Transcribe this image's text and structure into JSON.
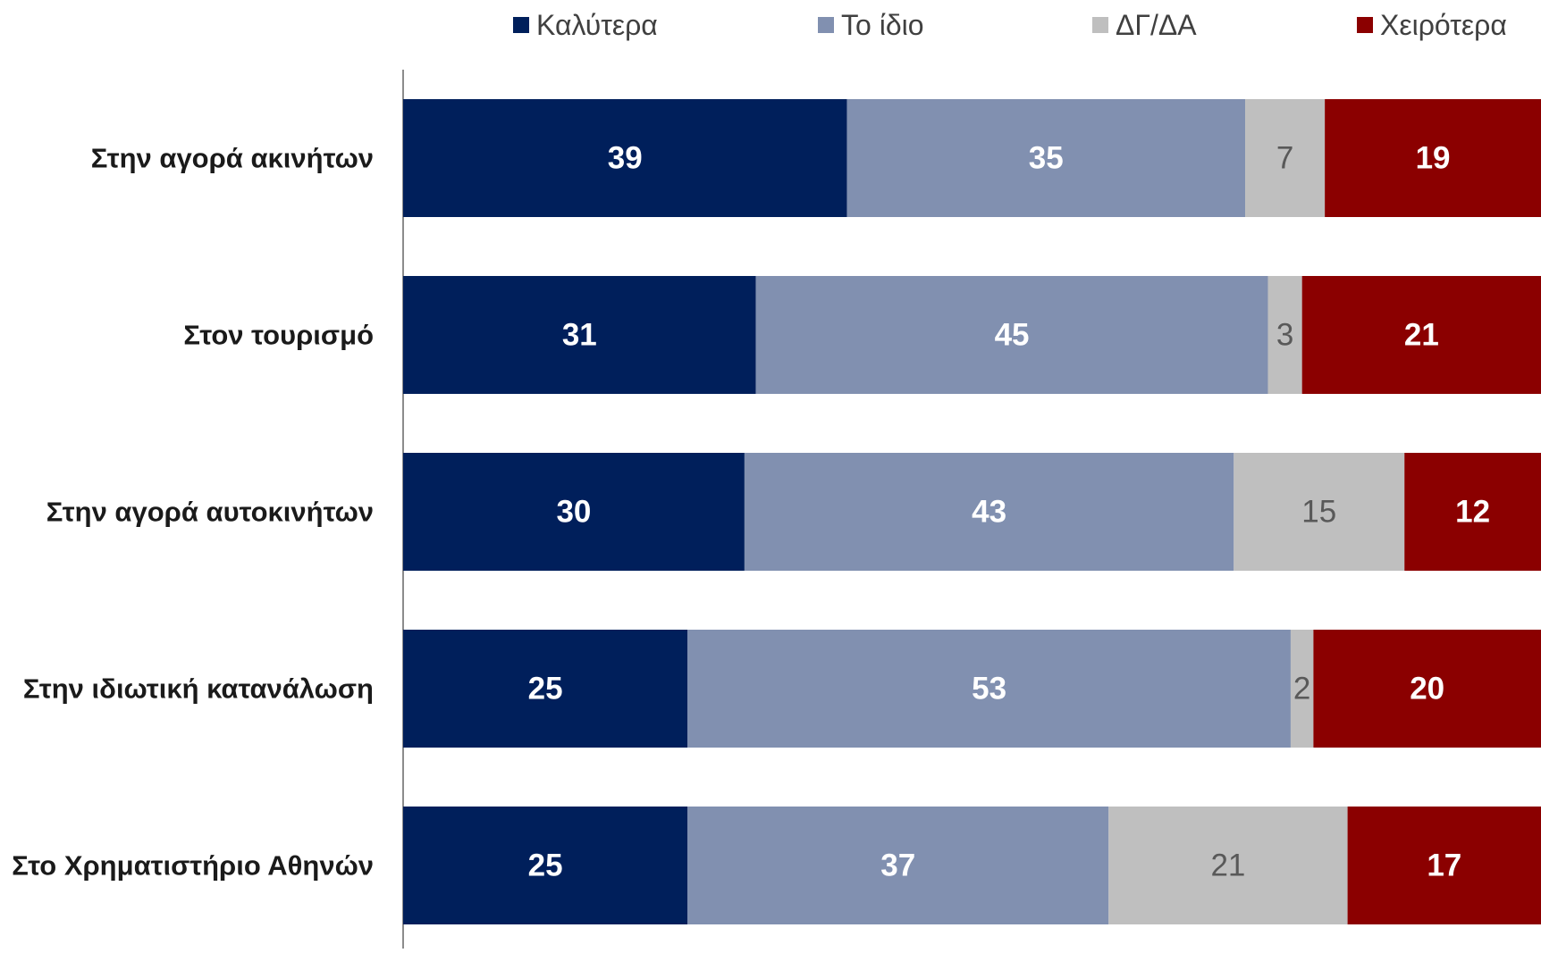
{
  "chart_data": {
    "type": "bar",
    "orientation": "horizontal",
    "stacked": true,
    "title": "",
    "xlabel": "",
    "ylabel": "",
    "xlim": [
      0,
      100
    ],
    "grid": false,
    "legend_position": "top",
    "categories": [
      "Στην αγορά ακινήτων",
      "Στον τουρισμό",
      "Στην αγορά αυτοκινήτων",
      "Στην ιδιωτική κατανάλωση",
      "Στο Χρηματιστήριο Αθηνών"
    ],
    "series": [
      {
        "name": "Καλύτερα",
        "color": "#001f5b",
        "label_color": "#ffffff",
        "label_bold": true,
        "values": [
          39,
          31,
          30,
          25,
          25
        ]
      },
      {
        "name": "Το ίδιο",
        "color": "#8190b0",
        "label_color": "#ffffff",
        "label_bold": true,
        "values": [
          35,
          45,
          43,
          53,
          37
        ]
      },
      {
        "name": "ΔΓ/ΔΑ",
        "color": "#bfbfbf",
        "label_color": "#595959",
        "label_bold": false,
        "values": [
          7,
          3,
          15,
          2,
          21
        ]
      },
      {
        "name": "Χειρότερα",
        "color": "#8b0000",
        "label_color": "#ffffff",
        "label_bold": true,
        "values": [
          19,
          21,
          12,
          20,
          17
        ]
      }
    ]
  }
}
